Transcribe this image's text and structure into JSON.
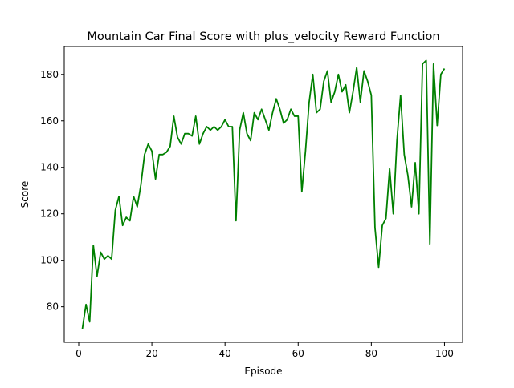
{
  "chart_data": {
    "type": "line",
    "title": "Mountain Car Final Score with plus_velocity Reward Function",
    "xlabel": "Episode",
    "ylabel": "Score",
    "xlim": [
      -3.95,
      104.95
    ],
    "ylim": [
      64.7,
      192.0
    ],
    "xticks": [
      0,
      20,
      40,
      60,
      80,
      100
    ],
    "yticks": [
      80,
      100,
      120,
      140,
      160,
      180
    ],
    "grid": false,
    "legend": "none",
    "series": [
      {
        "color": "#008000",
        "x": [
          1,
          2,
          3,
          4,
          5,
          6,
          7,
          8,
          9,
          10,
          11,
          12,
          13,
          14,
          15,
          16,
          17,
          18,
          19,
          20,
          21,
          22,
          23,
          24,
          25,
          26,
          27,
          28,
          29,
          30,
          31,
          32,
          33,
          34,
          35,
          36,
          37,
          38,
          39,
          40,
          41,
          42,
          43,
          44,
          45,
          46,
          47,
          48,
          49,
          50,
          51,
          52,
          53,
          54,
          55,
          56,
          57,
          58,
          59,
          60,
          61,
          62,
          63,
          64,
          65,
          66,
          67,
          68,
          69,
          70,
          71,
          72,
          73,
          74,
          75,
          76,
          77,
          78,
          79,
          80,
          81,
          82,
          83,
          84,
          85,
          86,
          87,
          88,
          89,
          90,
          91,
          92,
          93,
          94,
          95,
          96,
          97,
          98,
          99,
          100
        ],
        "y": [
          70.5,
          81,
          73.5,
          106.5,
          93,
          103.5,
          100.5,
          102,
          100.5,
          121.5,
          127.5,
          115,
          118.5,
          117,
          127.5,
          123,
          132.5,
          145.5,
          150,
          147,
          135,
          145.5,
          145.5,
          146.5,
          149,
          162,
          153,
          150,
          154.5,
          154.5,
          153.5,
          162,
          150,
          154.5,
          157.5,
          156,
          157.5,
          156,
          157.5,
          160.5,
          157.5,
          157.5,
          117,
          156,
          163.5,
          154.5,
          151.5,
          163.5,
          160.5,
          165,
          160.5,
          156,
          163.5,
          169.5,
          165,
          159,
          160.5,
          165,
          162,
          162,
          129.5,
          147,
          168,
          180,
          163.5,
          165,
          177,
          181.5,
          168,
          172.5,
          180,
          172.5,
          175.5,
          163.5,
          172.5,
          183,
          168,
          181.5,
          177,
          171,
          114,
          97,
          115,
          118,
          139.5,
          120,
          151.5,
          171,
          145.5,
          136.5,
          123,
          142,
          120,
          184.5,
          186,
          107,
          184.5,
          158,
          180,
          182.5
        ]
      }
    ]
  }
}
